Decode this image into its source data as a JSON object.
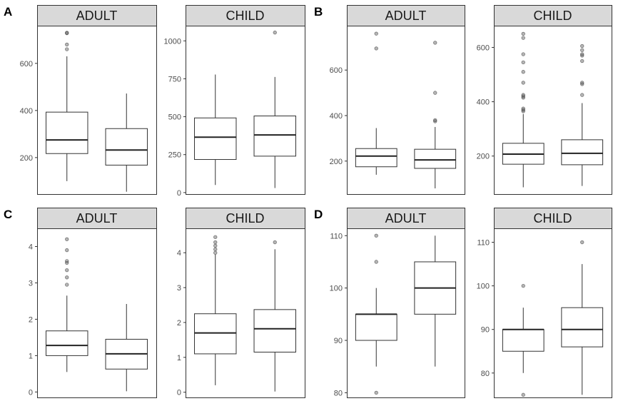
{
  "chart_data": [
    {
      "type": "boxplot",
      "panel_label": "A",
      "facets": [
        {
          "strip": "ADULT",
          "y_ticks": [
            200,
            400,
            600
          ],
          "ylim": [
            45,
            760
          ],
          "boxes": [
            {
              "min": 100,
              "q1": 217,
              "median": 275,
              "q3": 393,
              "max": 630,
              "outliers": [
                660,
                680,
                728,
                730
              ]
            },
            {
              "min": 55,
              "q1": 168,
              "median": 232,
              "q3": 323,
              "max": 472,
              "outliers": []
            }
          ]
        },
        {
          "strip": "CHILD",
          "y_ticks": [
            0,
            250,
            500,
            750,
            1000
          ],
          "ylim": [
            -10,
            1100
          ],
          "boxes": [
            {
              "min": 50,
              "q1": 218,
              "median": 365,
              "q3": 492,
              "max": 778,
              "outliers": []
            },
            {
              "min": 30,
              "q1": 240,
              "median": 380,
              "q3": 505,
              "max": 762,
              "outliers": [
                1055
              ]
            }
          ]
        }
      ]
    },
    {
      "type": "boxplot",
      "panel_label": "B",
      "facets": [
        {
          "strip": "ADULT",
          "y_ticks": [
            200,
            400,
            600
          ],
          "ylim": [
            55,
            795
          ],
          "boxes": [
            {
              "min": 140,
              "q1": 175,
              "median": 222,
              "q3": 255,
              "max": 345,
              "outliers": [
                695,
                760
              ]
            },
            {
              "min": 80,
              "q1": 168,
              "median": 205,
              "q3": 252,
              "max": 350,
              "outliers": [
                375,
                380,
                500,
                720
              ]
            }
          ]
        },
        {
          "strip": "CHILD",
          "y_ticks": [
            200,
            400,
            600
          ],
          "ylim": [
            60,
            680
          ],
          "boxes": [
            {
              "min": 85,
              "q1": 170,
              "median": 207,
              "q3": 247,
              "max": 355,
              "outliers": [
                365,
                370,
                375,
                415,
                420,
                425,
                470,
                510,
                545,
                575,
                635,
                650
              ]
            },
            {
              "min": 90,
              "q1": 168,
              "median": 210,
              "q3": 260,
              "max": 395,
              "outliers": [
                425,
                465,
                470,
                550,
                570,
                575,
                590,
                605
              ]
            }
          ]
        }
      ]
    },
    {
      "type": "boxplot",
      "panel_label": "C",
      "facets": [
        {
          "strip": "ADULT",
          "y_ticks": [
            0,
            1,
            2,
            3,
            4
          ],
          "ylim": [
            -0.15,
            4.5
          ],
          "boxes": [
            {
              "min": 0.55,
              "q1": 1.0,
              "median": 1.28,
              "q3": 1.68,
              "max": 2.65,
              "outliers": [
                2.95,
                3.15,
                3.35,
                3.55,
                3.6,
                3.9,
                4.2
              ]
            },
            {
              "min": 0.02,
              "q1": 0.63,
              "median": 1.05,
              "q3": 1.45,
              "max": 2.42,
              "outliers": []
            }
          ]
        },
        {
          "strip": "CHILD",
          "y_ticks": [
            0,
            1,
            2,
            3,
            4
          ],
          "ylim": [
            -0.15,
            4.7
          ],
          "boxes": [
            {
              "min": 0.2,
              "q1": 1.1,
              "median": 1.7,
              "q3": 2.25,
              "max": 3.95,
              "outliers": [
                4.0,
                4.1,
                4.2,
                4.3,
                4.45
              ]
            },
            {
              "min": 0.02,
              "q1": 1.15,
              "median": 1.82,
              "q3": 2.37,
              "max": 4.1,
              "outliers": [
                4.3
              ]
            }
          ]
        }
      ]
    },
    {
      "type": "boxplot",
      "panel_label": "D",
      "facets": [
        {
          "strip": "ADULT",
          "y_ticks": [
            80,
            90,
            100,
            110
          ],
          "ylim": [
            79.1,
            111.4
          ],
          "boxes": [
            {
              "min": 85,
              "q1": 90,
              "median": 95,
              "q3": 95,
              "max": 100,
              "outliers": [
                80,
                105,
                110
              ]
            },
            {
              "min": 85,
              "q1": 95,
              "median": 100,
              "q3": 105,
              "max": 110,
              "outliers": []
            }
          ]
        },
        {
          "strip": "CHILD",
          "y_ticks": [
            80,
            90,
            100,
            110
          ],
          "ylim": [
            74.4,
            113.2
          ],
          "boxes": [
            {
              "min": 80,
              "q1": 85,
              "median": 90,
              "q3": 90,
              "max": 95,
              "outliers": [
                75,
                100
              ]
            },
            {
              "min": 75,
              "q1": 86,
              "median": 90,
              "q3": 95,
              "max": 105,
              "outliers": [
                110
              ]
            }
          ]
        }
      ]
    }
  ]
}
